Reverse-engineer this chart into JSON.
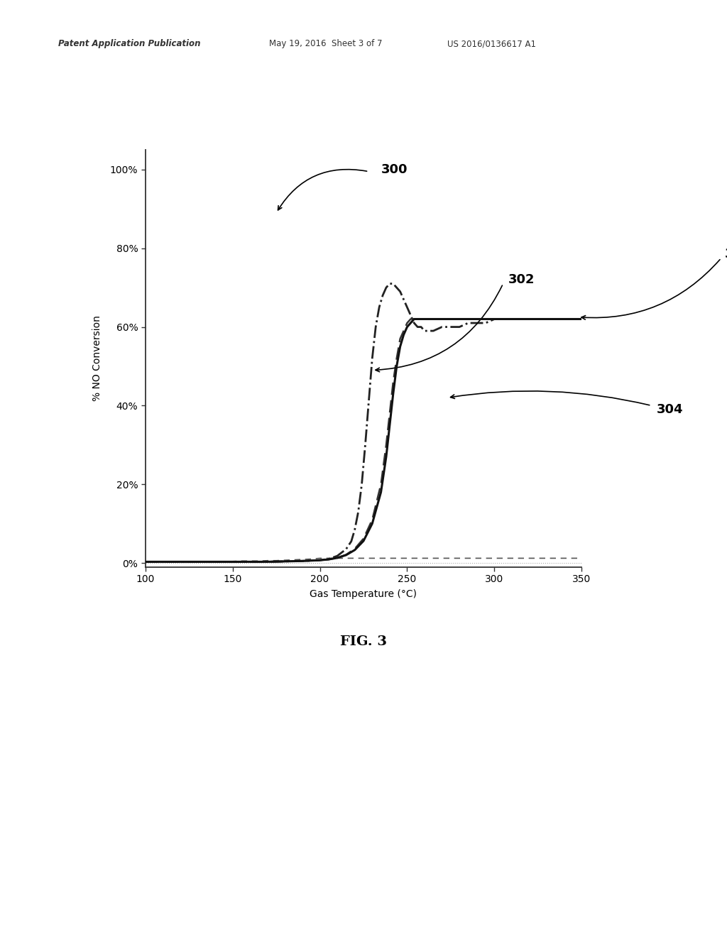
{
  "header_left": "Patent Application Publication",
  "header_mid": "May 19, 2016  Sheet 3 of 7",
  "header_right": "US 2016/0136617 A1",
  "xlabel": "Gas Temperature (°C)",
  "ylabel": "% NO Conversion",
  "xlim": [
    100,
    350
  ],
  "ylim": [
    -0.01,
    1.05
  ],
  "xticks": [
    100,
    150,
    200,
    250,
    300,
    350
  ],
  "yticks": [
    0,
    0.2,
    0.4,
    0.6,
    0.8,
    1.0
  ],
  "ytick_labels": [
    "0%",
    "20%",
    "40%",
    "60%",
    "80%",
    "100%"
  ],
  "fig_label": "FIG. 3",
  "bg_color": "#ffffff",
  "curve_300_x": [
    100,
    105,
    110,
    115,
    120,
    125,
    130,
    135,
    140,
    145,
    150,
    155,
    160,
    165,
    170,
    175,
    180,
    185,
    190,
    195,
    200,
    350
  ],
  "curve_300_y": [
    0.003,
    0.003,
    0.003,
    0.003,
    0.003,
    0.003,
    0.003,
    0.003,
    0.004,
    0.004,
    0.004,
    0.005,
    0.005,
    0.005,
    0.006,
    0.006,
    0.007,
    0.008,
    0.009,
    0.01,
    0.012,
    0.012
  ],
  "curve_302_x": [
    100,
    110,
    120,
    130,
    140,
    150,
    160,
    170,
    180,
    190,
    200,
    205,
    210,
    215,
    218,
    220,
    222,
    224,
    226,
    228,
    230,
    232,
    234,
    236,
    238,
    240,
    242,
    244,
    246,
    248,
    250,
    252,
    254,
    256,
    258,
    260,
    265,
    270,
    275,
    280,
    285,
    290,
    295,
    300,
    305,
    310,
    315,
    320,
    325,
    330,
    335,
    340,
    345,
    350
  ],
  "curve_302_y": [
    0.003,
    0.003,
    0.003,
    0.003,
    0.003,
    0.003,
    0.003,
    0.003,
    0.004,
    0.005,
    0.007,
    0.01,
    0.018,
    0.035,
    0.055,
    0.085,
    0.13,
    0.2,
    0.3,
    0.41,
    0.52,
    0.6,
    0.65,
    0.68,
    0.7,
    0.71,
    0.71,
    0.7,
    0.69,
    0.67,
    0.65,
    0.63,
    0.61,
    0.6,
    0.6,
    0.59,
    0.59,
    0.6,
    0.6,
    0.6,
    0.61,
    0.61,
    0.61,
    0.62,
    0.62,
    0.62,
    0.62,
    0.62,
    0.62,
    0.62,
    0.62,
    0.62,
    0.62,
    0.62
  ],
  "curve_304_x": [
    100,
    110,
    120,
    130,
    140,
    150,
    160,
    170,
    180,
    190,
    200,
    205,
    210,
    215,
    220,
    225,
    230,
    235,
    238,
    240,
    242,
    244,
    246,
    248,
    250,
    252,
    254,
    256,
    258,
    260,
    265,
    270,
    275,
    280,
    285,
    290,
    295,
    300,
    310,
    320,
    330,
    340,
    350
  ],
  "curve_304_y": [
    0.003,
    0.003,
    0.003,
    0.003,
    0.003,
    0.003,
    0.003,
    0.003,
    0.004,
    0.005,
    0.007,
    0.009,
    0.013,
    0.02,
    0.033,
    0.056,
    0.1,
    0.18,
    0.27,
    0.35,
    0.43,
    0.5,
    0.55,
    0.58,
    0.6,
    0.61,
    0.62,
    0.62,
    0.62,
    0.62,
    0.62,
    0.62,
    0.62,
    0.62,
    0.62,
    0.62,
    0.62,
    0.62,
    0.62,
    0.62,
    0.62,
    0.62,
    0.62
  ],
  "curve_304b_x": [
    100,
    110,
    120,
    130,
    140,
    150,
    160,
    170,
    180,
    190,
    200,
    205,
    210,
    215,
    220,
    225,
    230,
    235,
    238,
    240,
    242,
    244,
    246,
    248,
    250,
    252,
    254,
    256,
    258,
    260,
    265,
    270,
    275,
    280,
    285,
    290,
    295,
    300,
    310,
    320,
    330,
    340,
    350
  ],
  "curve_304b_y": [
    0.003,
    0.003,
    0.003,
    0.003,
    0.003,
    0.003,
    0.003,
    0.003,
    0.004,
    0.005,
    0.007,
    0.009,
    0.013,
    0.021,
    0.036,
    0.062,
    0.11,
    0.2,
    0.3,
    0.38,
    0.46,
    0.52,
    0.57,
    0.59,
    0.61,
    0.62,
    0.62,
    0.62,
    0.62,
    0.62,
    0.62,
    0.62,
    0.62,
    0.62,
    0.62,
    0.62,
    0.62,
    0.62,
    0.62,
    0.62,
    0.62,
    0.62,
    0.62
  ]
}
